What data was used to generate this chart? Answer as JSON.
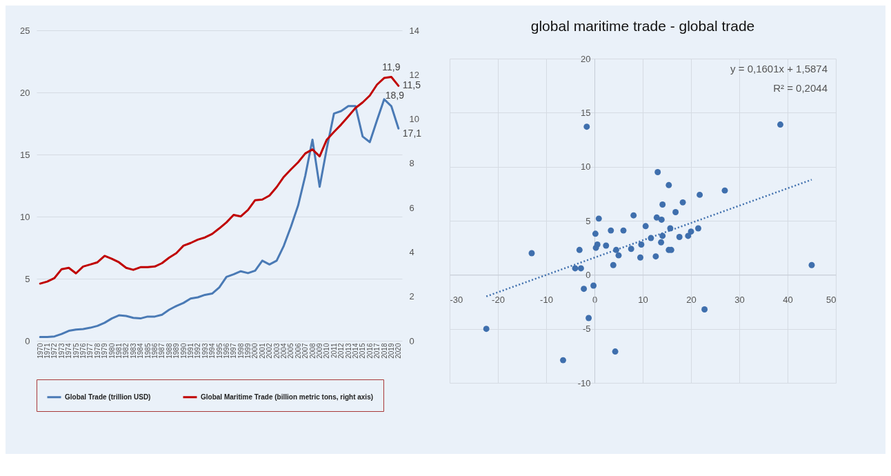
{
  "chart_data": [
    {
      "type": "line",
      "categories": [
        "1970",
        "1971",
        "1972",
        "1973",
        "1974",
        "1975",
        "1976",
        "1977",
        "1978",
        "1979",
        "1980",
        "1981",
        "1982",
        "1983",
        "1984",
        "1985",
        "1986",
        "1987",
        "1988",
        "1989",
        "1990",
        "1991",
        "1992",
        "1993",
        "1994",
        "1995",
        "1996",
        "1997",
        "1998",
        "1999",
        "2000",
        "2001",
        "2002",
        "2003",
        "2004",
        "2005",
        "2006",
        "2007",
        "2008",
        "2009",
        "2010",
        "2011",
        "2012",
        "2013",
        "2014",
        "2015",
        "2016",
        "2017",
        "2018",
        "2019",
        "2020"
      ],
      "ylim": [
        0,
        25
      ],
      "yticks": [
        0,
        5,
        10,
        15,
        20,
        25
      ],
      "y2lim": [
        0,
        14
      ],
      "y2ticks": [
        0,
        2,
        4,
        6,
        8,
        10,
        12,
        14
      ],
      "grid": "y",
      "legend": "bottom",
      "series": [
        {
          "name": "Global Trade (trillion USD)",
          "color": "#4a7ab5",
          "values": [
            0.3,
            0.3,
            0.35,
            0.55,
            0.8,
            0.9,
            0.95,
            1.05,
            1.2,
            1.45,
            1.8,
            2.05,
            2.0,
            1.85,
            1.8,
            1.95,
            1.95,
            2.1,
            2.5,
            2.8,
            3.05,
            3.4,
            3.5,
            3.7,
            3.8,
            4.3,
            5.15,
            5.35,
            5.6,
            5.45,
            5.65,
            6.45,
            6.15,
            6.45,
            7.65,
            9.2,
            10.9,
            13.3,
            16.2,
            12.4,
            15.5,
            18.3,
            18.5,
            18.9,
            18.9,
            16.45,
            16.0,
            17.75,
            19.45,
            18.9,
            17.1
          ],
          "value_labels": [
            null,
            null,
            null,
            null,
            null,
            null,
            null,
            null,
            null,
            null,
            null,
            null,
            null,
            null,
            null,
            null,
            null,
            null,
            null,
            null,
            null,
            null,
            null,
            null,
            null,
            null,
            null,
            null,
            null,
            null,
            null,
            null,
            null,
            null,
            null,
            null,
            null,
            null,
            null,
            null,
            null,
            null,
            null,
            null,
            null,
            null,
            null,
            null,
            null,
            "18,9",
            "17,1"
          ]
        },
        {
          "name": "Global Maritime Trade (billion metric tons, right axis)",
          "color": "#c00000",
          "axis": "y2",
          "values": [
            2.58,
            2.67,
            2.83,
            3.23,
            3.29,
            3.04,
            3.35,
            3.44,
            3.54,
            3.83,
            3.7,
            3.54,
            3.29,
            3.2,
            3.32,
            3.32,
            3.35,
            3.5,
            3.75,
            3.95,
            4.29,
            4.41,
            4.56,
            4.66,
            4.82,
            5.07,
            5.34,
            5.68,
            5.61,
            5.9,
            6.34,
            6.37,
            6.55,
            6.93,
            7.39,
            7.73,
            8.05,
            8.45,
            8.63,
            8.32,
            9.07,
            9.42,
            9.75,
            10.12,
            10.5,
            10.75,
            11.06,
            11.55,
            11.85,
            11.9,
            11.5
          ],
          "value_labels": [
            null,
            null,
            null,
            null,
            null,
            null,
            null,
            null,
            null,
            null,
            null,
            null,
            null,
            null,
            null,
            null,
            null,
            null,
            null,
            null,
            null,
            null,
            null,
            null,
            null,
            null,
            null,
            null,
            null,
            null,
            null,
            null,
            null,
            null,
            null,
            null,
            null,
            null,
            null,
            null,
            null,
            null,
            null,
            null,
            null,
            null,
            null,
            null,
            null,
            "11,9",
            "11,5"
          ]
        }
      ]
    },
    {
      "type": "scatter",
      "title": "global maritime trade - global trade",
      "xlim": [
        -30,
        50
      ],
      "xticks": [
        -30,
        -20,
        -10,
        0,
        10,
        20,
        30,
        40,
        50
      ],
      "ylim": [
        -10,
        20
      ],
      "yticks": [
        -10,
        -5,
        0,
        5,
        10,
        15,
        20
      ],
      "grid": true,
      "annotations": [
        "y = 0,1601x + 1,5874",
        "R² = 0,2044"
      ],
      "series": [
        {
          "color": "#3f6fad",
          "marker": "circle",
          "x": [
            -1.6,
            38.5,
            13.1,
            15.4,
            27.0,
            21.8,
            18.3,
            14.1,
            16.8,
            8.1,
            0.9,
            12.9,
            13.9,
            10.6,
            3.4,
            6.0,
            0.2,
            15.7,
            21.5,
            20.0,
            19.4,
            17.6,
            14.1,
            11.7,
            13.8,
            0.6,
            0.3,
            2.4,
            9.7,
            4.5,
            7.6,
            -3.1,
            15.4,
            15.9,
            5.0,
            9.5,
            12.7,
            -13.0,
            3.9,
            -4.0,
            -2.8,
            45.0,
            -2.2,
            -0.2,
            22.8,
            -1.2,
            -22.4,
            4.3,
            -6.5
          ],
          "values": [
            13.7,
            13.9,
            9.5,
            8.3,
            7.8,
            7.4,
            6.7,
            6.5,
            5.8,
            5.5,
            5.2,
            5.3,
            5.1,
            4.5,
            4.1,
            4.1,
            3.8,
            4.3,
            4.3,
            4.0,
            3.6,
            3.5,
            3.6,
            3.4,
            3.0,
            2.8,
            2.5,
            2.7,
            2.8,
            2.3,
            2.4,
            2.3,
            2.3,
            2.3,
            1.8,
            1.6,
            1.7,
            2.0,
            0.9,
            0.6,
            0.6,
            0.9,
            -1.3,
            -1.0,
            -3.2,
            -4.0,
            -5.0,
            -7.1,
            -7.9
          ]
        },
        {
          "type": "line",
          "color": "#3f6fad",
          "line_style": "dotted",
          "x": [
            -22.4,
            45.0
          ],
          "values": [
            -2.0,
            8.8
          ]
        }
      ]
    }
  ]
}
